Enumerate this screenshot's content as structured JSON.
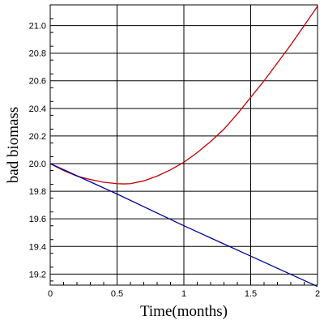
{
  "chart_data": {
    "type": "line",
    "xlabel": "Time(months)",
    "ylabel": "bad biomass",
    "xlim": [
      0,
      2
    ],
    "ylim": [
      19.12,
      21.15
    ],
    "grid": true,
    "x_ticks": [
      0,
      0.5,
      1,
      1.5,
      2
    ],
    "x_tick_labels": [
      "0",
      "0.5",
      "1",
      "1.5",
      "2"
    ],
    "y_ticks": [
      19.2,
      19.4,
      19.6,
      19.8,
      20.0,
      20.2,
      20.4,
      20.6,
      20.8,
      21.0
    ],
    "y_tick_labels": [
      "19.2",
      "19.4",
      "19.6",
      "19.8",
      "20.0",
      "20.2",
      "20.4",
      "20.6",
      "20.8",
      "21.0"
    ],
    "series": [
      {
        "color": "#c00000",
        "x": [
          0,
          0.1,
          0.2,
          0.3,
          0.4,
          0.5,
          0.55,
          0.6,
          0.7,
          0.8,
          0.9,
          1.0,
          1.1,
          1.2,
          1.3,
          1.4,
          1.5,
          1.6,
          1.7,
          1.8,
          1.9,
          2.0
        ],
        "y": [
          20.0,
          19.95,
          19.91,
          19.885,
          19.865,
          19.855,
          19.853,
          19.855,
          19.875,
          19.91,
          19.955,
          20.01,
          20.08,
          20.16,
          20.25,
          20.36,
          20.48,
          20.6,
          20.73,
          20.86,
          21.0,
          21.14
        ]
      },
      {
        "color": "#000099",
        "x": [
          0,
          0.5,
          1.0,
          1.5,
          2.0
        ],
        "y": [
          20.0,
          19.78,
          19.55,
          19.33,
          19.11
        ]
      }
    ]
  }
}
